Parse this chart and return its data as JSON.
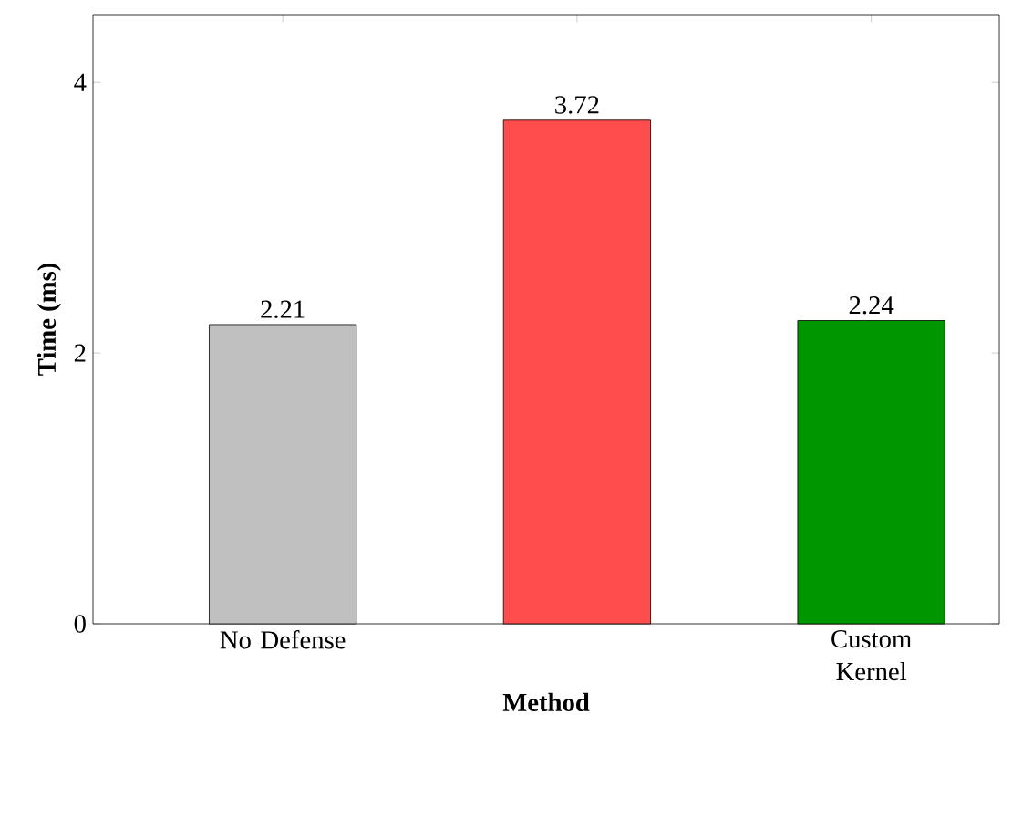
{
  "chart_data": {
    "type": "bar",
    "xlabel": "Method",
    "ylabel": "Time (ms)",
    "categories": [
      "No Defense",
      null,
      "Custom Kernel"
    ],
    "values": [
      2.21,
      3.72,
      2.24
    ],
    "colors": [
      "#c0c0c0",
      "#ff4c4c",
      "#009600"
    ],
    "ylim": [
      0,
      4.5
    ],
    "yticks": [
      0,
      2,
      4
    ],
    "data_labels": true
  }
}
